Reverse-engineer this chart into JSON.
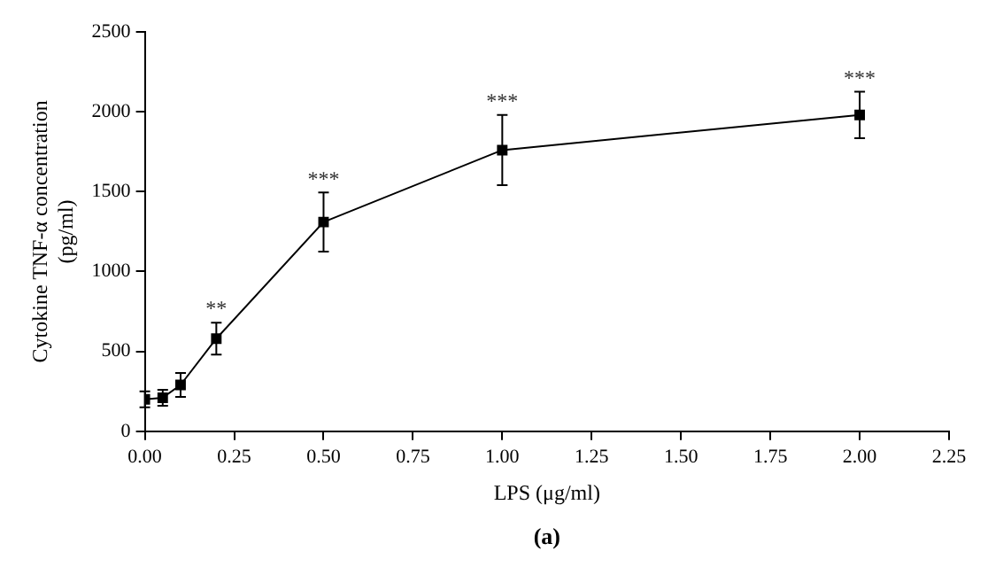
{
  "chart_data": {
    "type": "line",
    "xlabel": "LPS (μg/ml)",
    "ylabel": "Cytokine TNF-α concentration (pg/ml)",
    "x": [
      0,
      0.05,
      0.1,
      0.2,
      0.5,
      1.0,
      2.0
    ],
    "series": [
      {
        "color": "#000000",
        "values": [
          200,
          210,
          290,
          580,
          1310,
          1760,
          1980
        ],
        "errors": [
          50,
          50,
          75,
          100,
          185,
          220,
          145
        ]
      }
    ],
    "xlim": [
      0,
      2.25
    ],
    "xticks": [
      {
        "value": 0,
        "label": "0.00"
      },
      {
        "value": 0.25,
        "label": "0.25"
      },
      {
        "value": 0.5,
        "label": "0.50"
      },
      {
        "value": 0.75,
        "label": "0.75"
      },
      {
        "value": 1,
        "label": "1.00"
      },
      {
        "value": 1.25,
        "label": "1.25"
      },
      {
        "value": 1.5,
        "label": "1.50"
      },
      {
        "value": 1.75,
        "label": "1.75"
      },
      {
        "value": 2,
        "label": "2.00"
      },
      {
        "value": 2.25,
        "label": "2.25"
      }
    ],
    "ylim": [
      0,
      2500
    ],
    "yticks": [
      0,
      500,
      1000,
      1500,
      2000,
      2500
    ],
    "grid": false,
    "legend": false,
    "marker": "square",
    "line_style": "solid",
    "annotations": [
      {
        "text": "**",
        "x": 0.2,
        "y": 580
      },
      {
        "text": "***",
        "x": 0.5,
        "y": 1310
      },
      {
        "text": "***",
        "x": 1.0,
        "y": 1760
      },
      {
        "text": "***",
        "x": 2.0,
        "y": 1980
      },
      "(a)"
    ]
  }
}
